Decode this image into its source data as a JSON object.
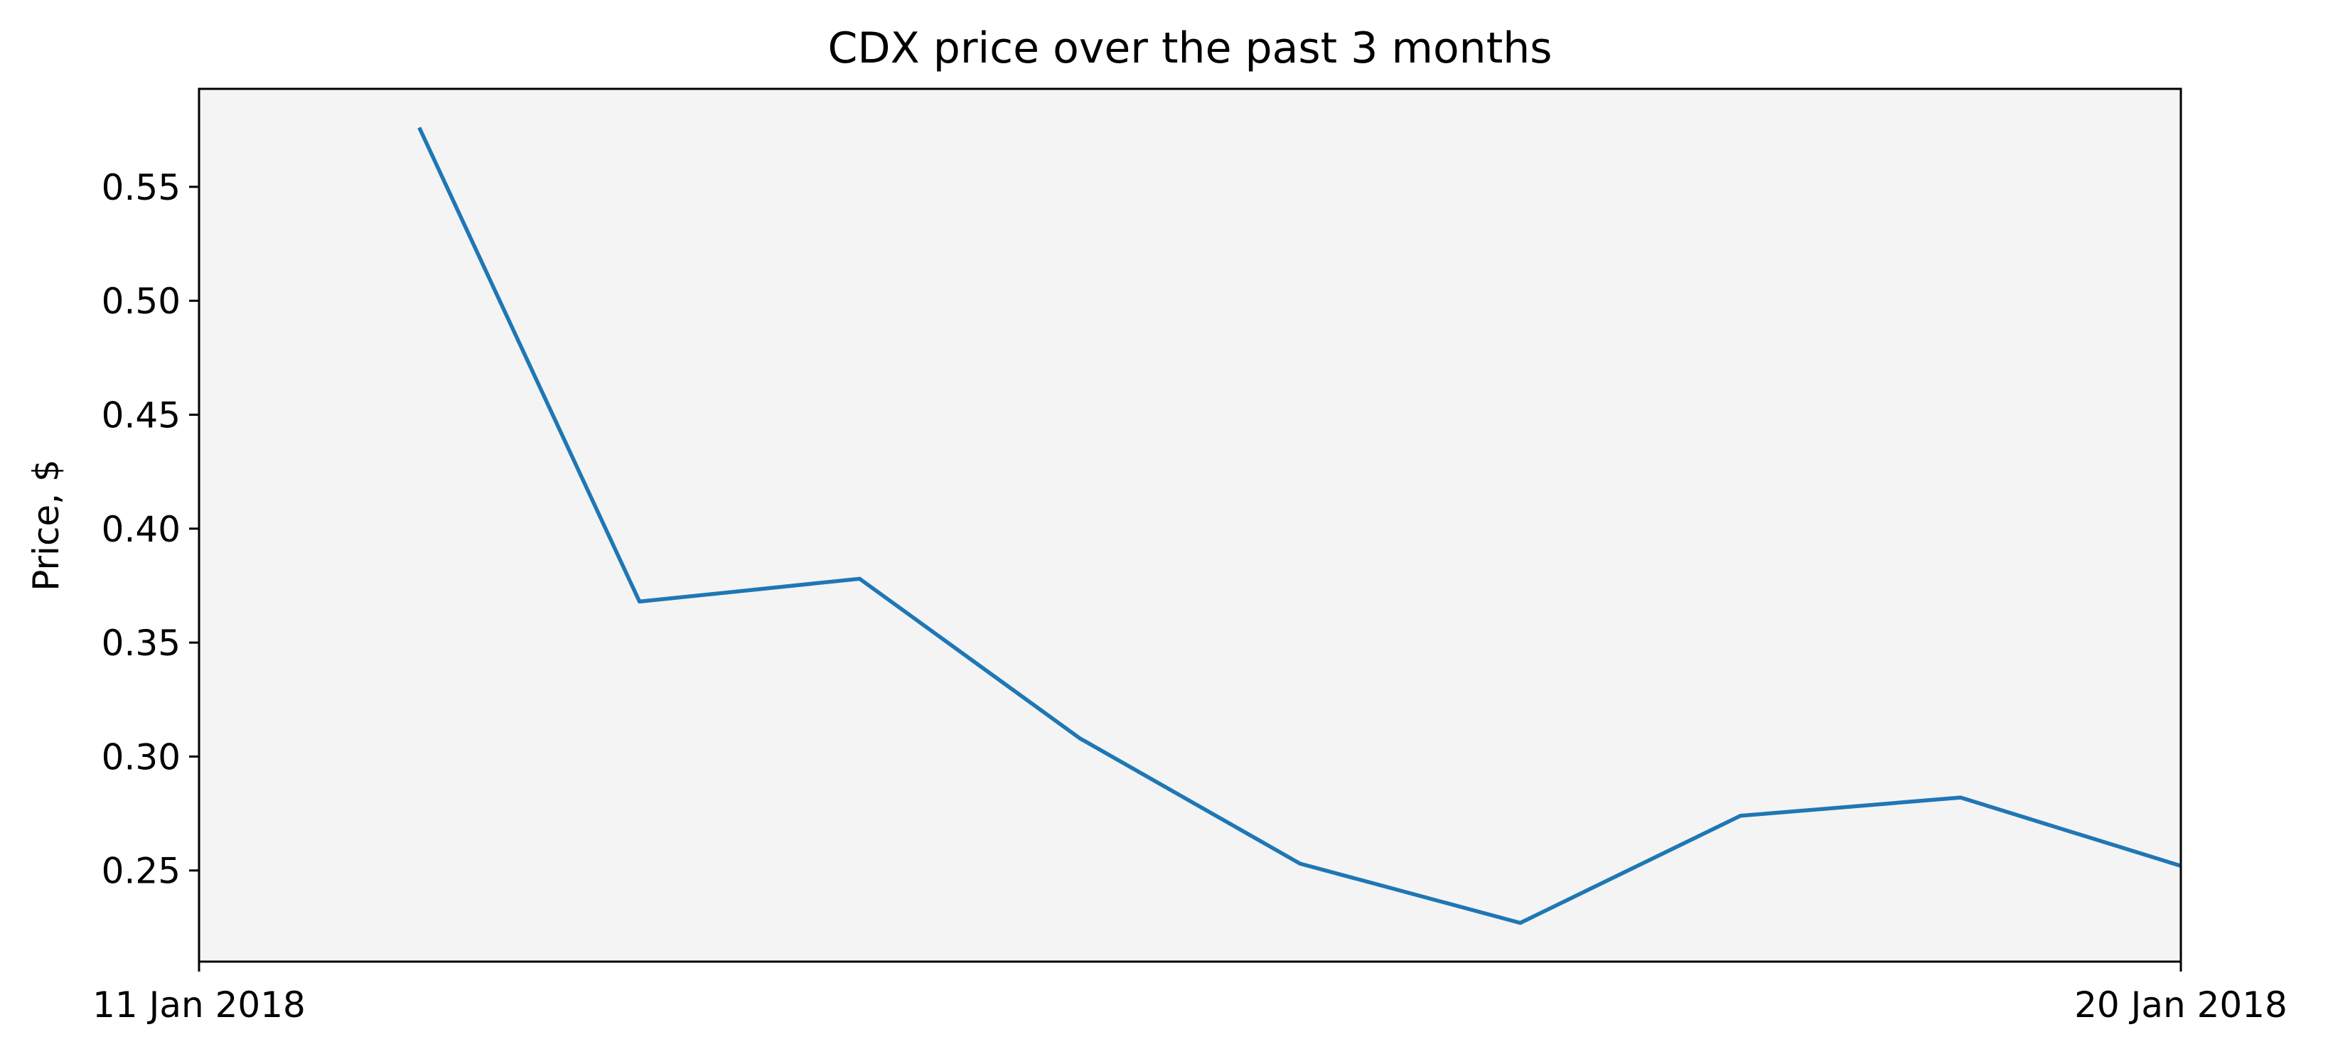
{
  "chart_data": {
    "type": "line",
    "title": "CDX price over the past 3 months",
    "xlabel": "",
    "ylabel": "Price, $",
    "x": [
      "2018-01-12",
      "2018-01-13",
      "2018-01-14",
      "2018-01-15",
      "2018-01-16",
      "2018-01-17",
      "2018-01-18",
      "2018-01-19",
      "2018-01-20"
    ],
    "xlim": [
      "2018-01-11",
      "2018-01-20"
    ],
    "x_ticks": [
      "11 Jan 2018",
      "20 Jan 2018"
    ],
    "ylim": [
      0.21,
      0.593
    ],
    "y_ticks": [
      "0.25",
      "0.30",
      "0.35",
      "0.40",
      "0.45",
      "0.50",
      "0.55"
    ],
    "series": [
      {
        "values": [
          0.576,
          0.368,
          0.378,
          0.308,
          0.253,
          0.227,
          0.274,
          0.282,
          0.252
        ]
      }
    ],
    "grid": false,
    "legend": "none",
    "line_color": "#1f77b4",
    "plot_background": "#f4f4f4"
  }
}
